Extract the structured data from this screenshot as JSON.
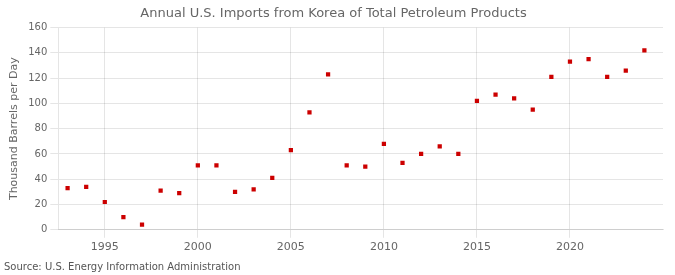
{
  "chart_data": {
    "type": "scatter",
    "title": "Annual U.S. Imports from Korea of Total Petroleum Products",
    "ylabel": "Thousand Barrels per Day",
    "source": "Source: U.S. Energy Information Administration",
    "x": [
      1993,
      1994,
      1995,
      1996,
      1997,
      1998,
      1999,
      2000,
      2001,
      2002,
      2003,
      2004,
      2005,
      2006,
      2007,
      2008,
      2009,
      2010,
      2011,
      2012,
      2013,
      2014,
      2015,
      2016,
      2017,
      2018,
      2019,
      2020,
      2021,
      2022,
      2023,
      2024
    ],
    "values": [
      33,
      34,
      22,
      10,
      4,
      31,
      29,
      51,
      51,
      30,
      32,
      41,
      63,
      93,
      123,
      51,
      50,
      68,
      53,
      60,
      66,
      60,
      102,
      107,
      104,
      95,
      121,
      133,
      135,
      121,
      126,
      142
    ],
    "color": "#cc0000",
    "marker": "square",
    "xlim": [
      1992.5,
      2025
    ],
    "xticks": [
      1995,
      2000,
      2005,
      2010,
      2015,
      2020
    ],
    "ylim": [
      0,
      160
    ],
    "yticks": [
      0,
      20,
      40,
      60,
      80,
      100,
      120,
      140,
      160
    ],
    "grid": true
  }
}
